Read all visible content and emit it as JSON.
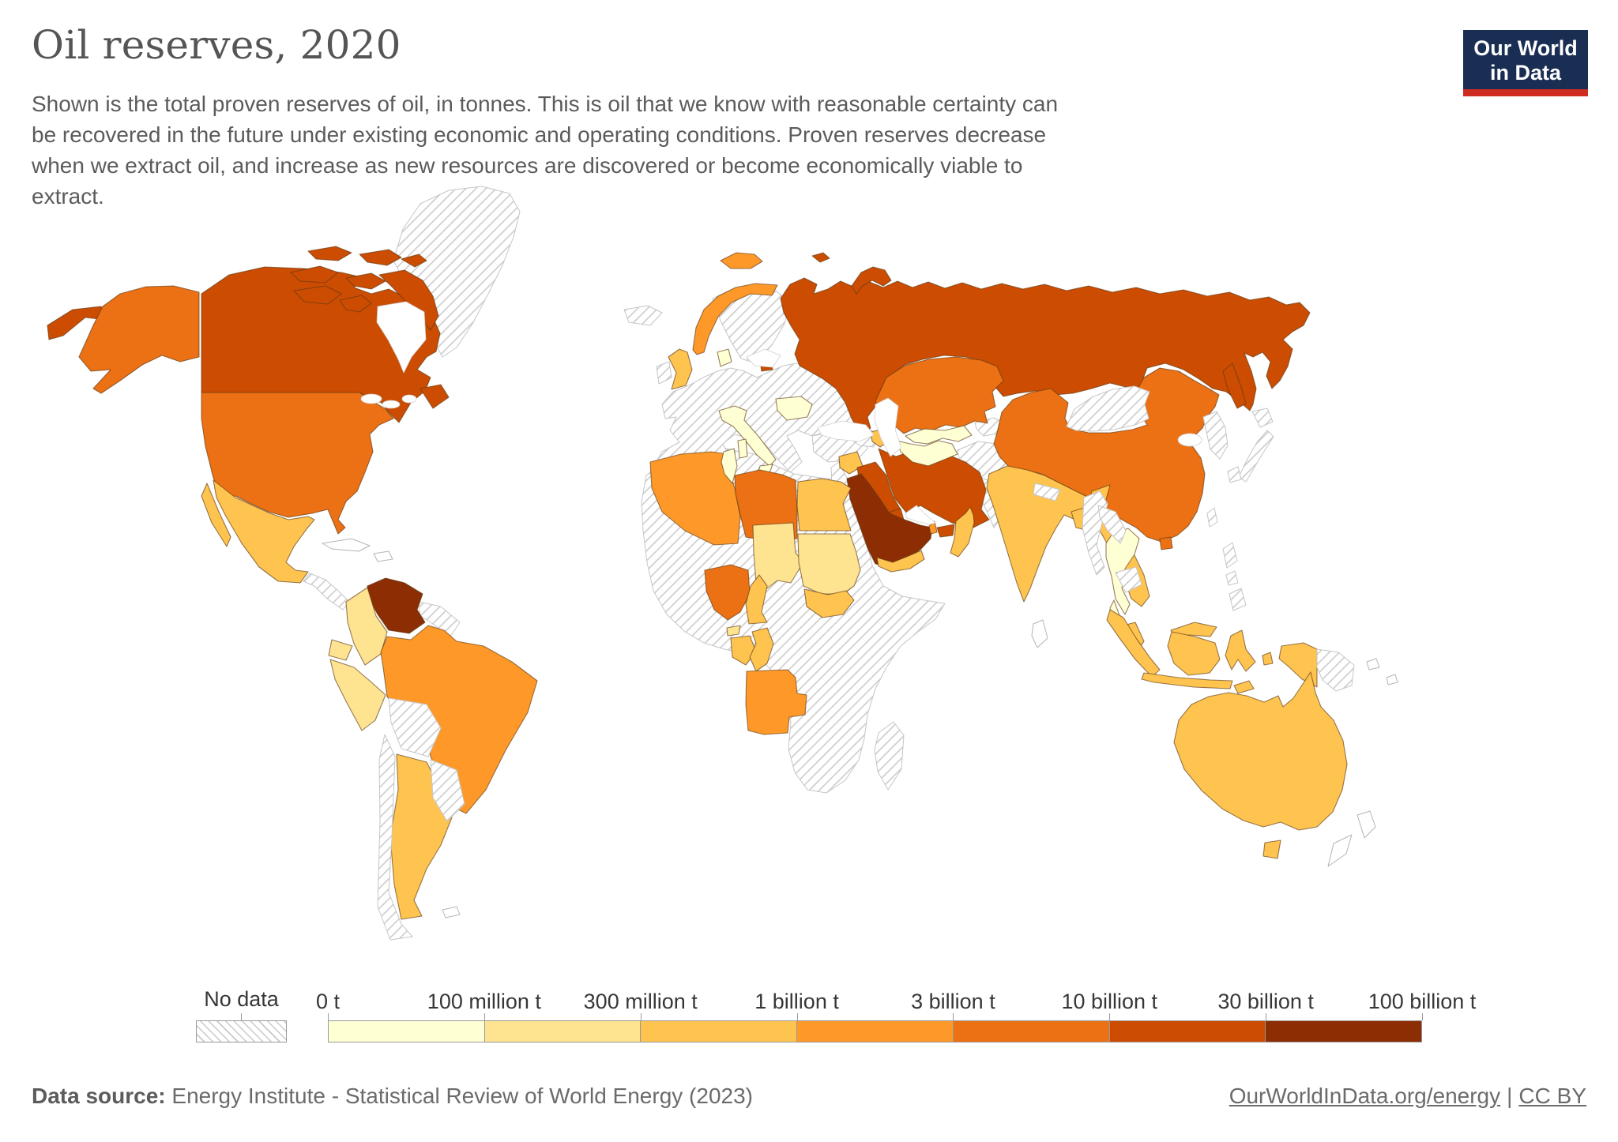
{
  "page": {
    "background": "#ffffff"
  },
  "header": {
    "title": "Oil reserves, 2020",
    "subtitle": "Shown is the total proven reserves of oil, in tonnes. This is oil that we know with reasonable certainty can be recovered in the future under existing economic and operating conditions. Proven reserves decrease when we extract oil, and increase as new resources are discovered or become economically viable to extract."
  },
  "logo": {
    "line1": "Our World",
    "line2": "in Data",
    "bg_color": "#1a2e54",
    "accent_color": "#cf2c21"
  },
  "legend": {
    "no_data_label": "No data",
    "tick_labels": [
      "0 t",
      "100 million t",
      "300 million t",
      "1 billion t",
      "3 billion t",
      "10 billion t",
      "30 billion t",
      "100 billion t"
    ]
  },
  "footer": {
    "source_label": "Data source:",
    "source_text": "Energy Institute - Statistical Review of World Energy (2023)",
    "link_text": "OurWorldInData.org/energy",
    "separator": "|",
    "license_text": "CC BY"
  },
  "chart_data": {
    "type": "choropleth",
    "title": "Oil reserves, 2020",
    "year": 2020,
    "unit": "tonnes",
    "palette": [
      "#ffffd4",
      "#fee391",
      "#fec44f",
      "#fe9929",
      "#ec7014",
      "#cc4c02",
      "#8c2d04"
    ],
    "bins": [
      {
        "label": "0 t - 100 million t",
        "color": "#ffffd4"
      },
      {
        "label": "100 million t - 300 million t",
        "color": "#fee391"
      },
      {
        "label": "300 million t - 1 billion t",
        "color": "#fec44f"
      },
      {
        "label": "1 billion t - 3 billion t",
        "color": "#fe9929"
      },
      {
        "label": "3 billion t - 10 billion t",
        "color": "#ec7014"
      },
      {
        "label": "10 billion t - 30 billion t",
        "color": "#cc4c02"
      },
      {
        "label": "30 billion t - 100 billion t",
        "color": "#8c2d04"
      }
    ],
    "countries": {
      "canada": 5,
      "usa": 4,
      "mexico": 2,
      "venezuela": 6,
      "colombia": 1,
      "ecuador": 1,
      "peru": 1,
      "brazil": 3,
      "argentina": 2,
      "norway": 3,
      "uk": 2,
      "denmark": 0,
      "italy": 0,
      "romania": 0,
      "russia": 5,
      "kazakhstan": 4,
      "uzbekistan": 0,
      "turkmenistan": 0,
      "azerbaijan": 2,
      "syria": 2,
      "iraq": 5,
      "iran": 5,
      "kuwait": 5,
      "saudi-arabia": 6,
      "qatar": 3,
      "uae": 5,
      "oman": 2,
      "yemen": 2,
      "algeria": 3,
      "tunisia": 0,
      "libya": 4,
      "egypt": 2,
      "chad": 1,
      "sudan": 1,
      "south-sudan": 2,
      "nigeria": 4,
      "cameroon": 2,
      "eq-guinea": 1,
      "gabon": 2,
      "congo": 2,
      "angola": 3,
      "india": 2,
      "bangladesh": 2,
      "china": 4,
      "thailand": 0,
      "vietnam": 2,
      "malaysia": 2,
      "indonesia": 2,
      "australia": 2
    },
    "no_data_regions": [
      "greenland",
      "iceland",
      "ireland",
      "central-america",
      "guyanas",
      "bolivia",
      "paraguay-uruguay",
      "chile",
      "europe-mainland",
      "scandinavia",
      "turkey",
      "caucasus",
      "kyrgyz-tajik",
      "afghanistan",
      "pakistan",
      "levant",
      "africa",
      "madagascar",
      "nepal",
      "myanmar",
      "laos",
      "cambodia",
      "png",
      "philippines",
      "taiwan",
      "mongolia",
      "korea",
      "japan"
    ],
    "outline_only_regions": [
      "cuba",
      "hispaniola",
      "falklands",
      "sri-lanka",
      "new-zealand",
      "pacific-islands"
    ]
  }
}
